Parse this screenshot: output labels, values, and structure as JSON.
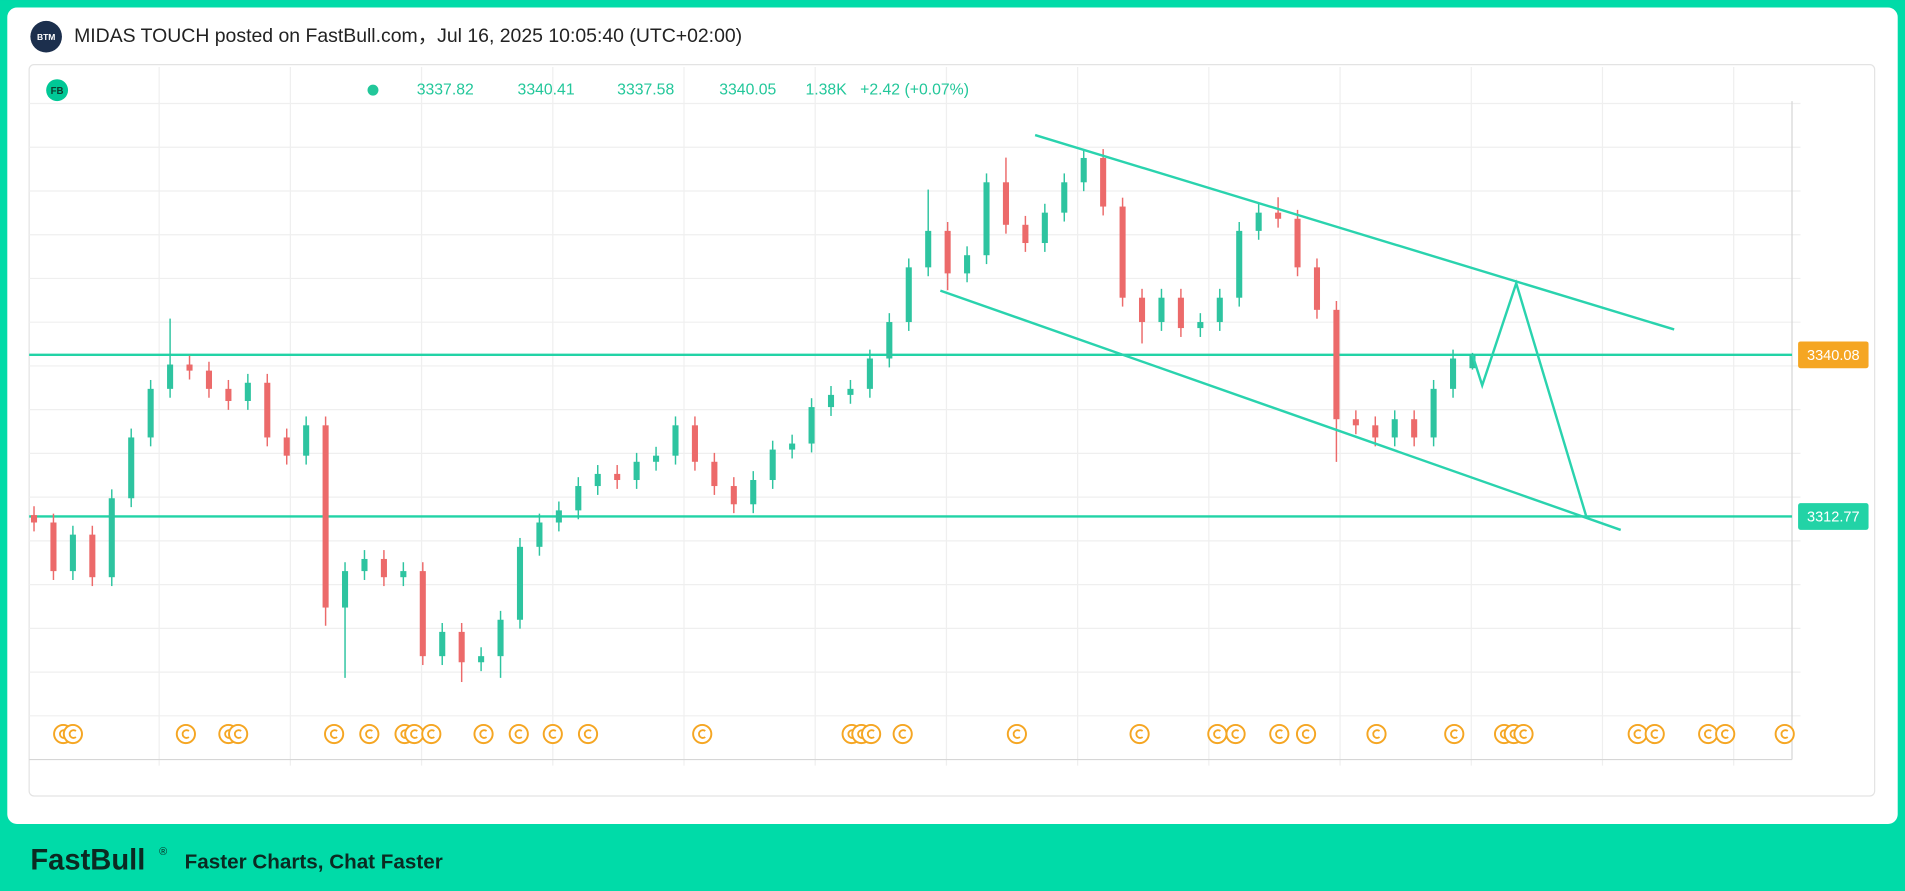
{
  "header": {
    "title": "MIDAS TOUCH posted on FastBull.com，Jul 16, 2025 10:05:40 (UTC+02:00)",
    "avatar": "BTM"
  },
  "chart_data": {
    "type": "candlestick",
    "symbol_badge": "FB",
    "ohlc_header": {
      "open": "3337.82",
      "high": "3340.41",
      "low": "3337.58",
      "close": "3340.05",
      "volume": "1.38K",
      "change": "+2.42 (+0.07%)"
    },
    "ylim": [
      3271.7,
      3388.7
    ],
    "levels": [
      {
        "value": 3340.08,
        "color": "#f5a623"
      },
      {
        "value": 3312.77,
        "color": "#22d3a6"
      }
    ],
    "up_color": "#2ec4a0",
    "down_color": "#ec6a6a",
    "open": [
      3313.0,
      3311.75,
      3303.54,
      3309.7,
      3302.51,
      3315.85,
      3326.12,
      3334.33,
      3338.44,
      3337.41,
      3334.33,
      3332.28,
      3335.36,
      3326.12,
      3323.04,
      3328.17,
      3297.38,
      3303.54,
      3305.59,
      3302.51,
      3303.54,
      3289.17,
      3293.27,
      3288.14,
      3289.17,
      3295.32,
      3307.64,
      3311.75,
      3313.8,
      3317.91,
      3319.96,
      3318.93,
      3322.01,
      3323.04,
      3328.17,
      3322.01,
      3317.91,
      3314.83,
      3318.93,
      3324.07,
      3325.09,
      3331.25,
      3333.31,
      3334.33,
      3339.46,
      3345.62,
      3354.86,
      3361.02,
      3353.84,
      3356.91,
      3369.23,
      3362.05,
      3358.97,
      3364.1,
      3369.23,
      3373.34,
      3365.13,
      3349.73,
      3345.62,
      3349.73,
      3344.6,
      3345.62,
      3349.73,
      3361.02,
      3364.1,
      3363.07,
      3354.86,
      3347.68,
      3329.2,
      3328.17,
      3326.12,
      3329.2,
      3326.12,
      3334.33,
      3337.82
    ],
    "high": [
      3314.5,
      3313.25,
      3311.2,
      3311.2,
      3317.35,
      3327.62,
      3335.83,
      3346.2,
      3339.94,
      3338.91,
      3335.83,
      3336.86,
      3336.86,
      3327.62,
      3329.67,
      3329.67,
      3305.04,
      3307.09,
      3307.09,
      3305.04,
      3305.04,
      3294.77,
      3294.77,
      3290.67,
      3296.82,
      3309.14,
      3313.25,
      3315.3,
      3319.41,
      3321.46,
      3321.46,
      3323.51,
      3324.54,
      3329.67,
      3329.67,
      3323.51,
      3319.41,
      3320.43,
      3325.57,
      3326.59,
      3332.75,
      3334.81,
      3335.83,
      3340.96,
      3347.12,
      3356.36,
      3368.0,
      3362.52,
      3358.41,
      3370.73,
      3373.4,
      3363.55,
      3365.6,
      3370.73,
      3374.84,
      3374.84,
      3366.63,
      3351.23,
      3351.23,
      3351.23,
      3347.12,
      3351.23,
      3362.52,
      3365.6,
      3366.7,
      3364.57,
      3356.36,
      3349.18,
      3330.7,
      3329.67,
      3330.7,
      3330.7,
      3335.83,
      3340.96,
      3340.41
    ],
    "low": [
      3310.25,
      3302.04,
      3302.04,
      3301.01,
      3301.01,
      3314.35,
      3324.62,
      3332.83,
      3335.91,
      3332.83,
      3330.78,
      3330.78,
      3324.62,
      3321.54,
      3321.54,
      3294.3,
      3285.5,
      3302.04,
      3301.01,
      3301.01,
      3287.67,
      3287.67,
      3284.8,
      3286.64,
      3285.5,
      3293.82,
      3306.14,
      3310.25,
      3312.3,
      3316.41,
      3317.43,
      3317.43,
      3320.51,
      3321.54,
      3320.51,
      3316.41,
      3313.33,
      3313.33,
      3317.43,
      3322.57,
      3323.59,
      3329.75,
      3331.81,
      3332.83,
      3337.96,
      3344.12,
      3353.36,
      3351.0,
      3352.34,
      3355.41,
      3360.55,
      3357.47,
      3357.47,
      3362.6,
      3367.73,
      3363.63,
      3348.23,
      3342.0,
      3344.12,
      3343.1,
      3343.1,
      3344.12,
      3348.23,
      3359.52,
      3361.57,
      3353.36,
      3346.18,
      3322.0,
      3326.67,
      3324.62,
      3324.62,
      3324.62,
      3324.62,
      3332.83,
      3337.58
    ],
    "close": [
      3311.75,
      3303.54,
      3309.7,
      3302.51,
      3315.85,
      3326.12,
      3334.33,
      3338.44,
      3337.41,
      3334.33,
      3332.28,
      3335.36,
      3326.12,
      3323.04,
      3328.17,
      3297.38,
      3303.54,
      3305.59,
      3302.51,
      3303.54,
      3289.17,
      3293.27,
      3288.14,
      3289.17,
      3295.32,
      3307.64,
      3311.75,
      3313.8,
      3317.91,
      3319.96,
      3318.93,
      3322.01,
      3323.04,
      3328.17,
      3322.01,
      3317.91,
      3314.83,
      3318.93,
      3324.07,
      3325.09,
      3331.25,
      3333.31,
      3334.33,
      3339.46,
      3345.62,
      3354.86,
      3361.02,
      3353.84,
      3356.91,
      3369.23,
      3362.05,
      3358.97,
      3364.1,
      3369.23,
      3373.34,
      3365.13,
      3349.73,
      3345.62,
      3349.73,
      3344.6,
      3345.62,
      3349.73,
      3361.02,
      3364.1,
      3363.07,
      3354.86,
      3347.68,
      3329.2,
      3328.17,
      3326.12,
      3329.2,
      3326.12,
      3334.33,
      3339.46,
      3340.05
    ]
  },
  "footer": {
    "brand": "FastBull",
    "brand_mark": "®",
    "slogan": "Faster Charts, Chat Faster"
  }
}
